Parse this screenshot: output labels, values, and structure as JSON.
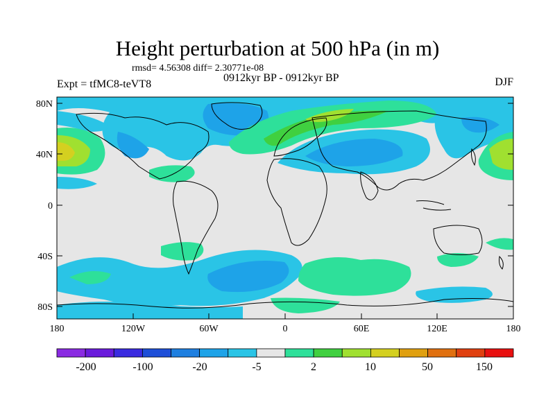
{
  "title": "Height perturbation at 500 hPa (in m)",
  "stats": "rmsd= 4.56308 diff= 2.30771e-08",
  "experiment": "Expt = tfMC8-teVT8",
  "period": "0912kyr BP - 0912kyr BP",
  "season": "DJF",
  "map": {
    "projection": "cylindrical equidistant",
    "lon_range": [
      -180,
      180
    ],
    "lat_range": [
      -90,
      90
    ],
    "lat_ticks": [
      "80N",
      "40N",
      "0",
      "40S",
      "80S"
    ],
    "lon_ticks": [
      "180",
      "120W",
      "60W",
      "0",
      "60E",
      "120E",
      "180"
    ]
  },
  "colorbar": {
    "labels": [
      "-200",
      "-100",
      "-20",
      "-5",
      "2",
      "10",
      "50",
      "150"
    ],
    "colors": [
      "#8a2be2",
      "#6a1bdc",
      "#3a2be0",
      "#1e4fd8",
      "#1e7fe0",
      "#1ea3e8",
      "#2ac4e6",
      "#e6e6e6",
      "#2ee09a",
      "#40d040",
      "#a0e030",
      "#d4d020",
      "#e0a010",
      "#e07010",
      "#e04010",
      "#e81010"
    ]
  },
  "palette": {
    "land_outline": "#000000",
    "neutral": "#e6e6e6",
    "blue_mid": "#1ea3e8",
    "blue_dark": "#1e7fe0",
    "cyan": "#2ac4e6",
    "green": "#2ee09a",
    "green_dark": "#40d040",
    "yellow_green": "#a0e030",
    "yellow": "#d4d020",
    "orange": "#e0a010"
  }
}
